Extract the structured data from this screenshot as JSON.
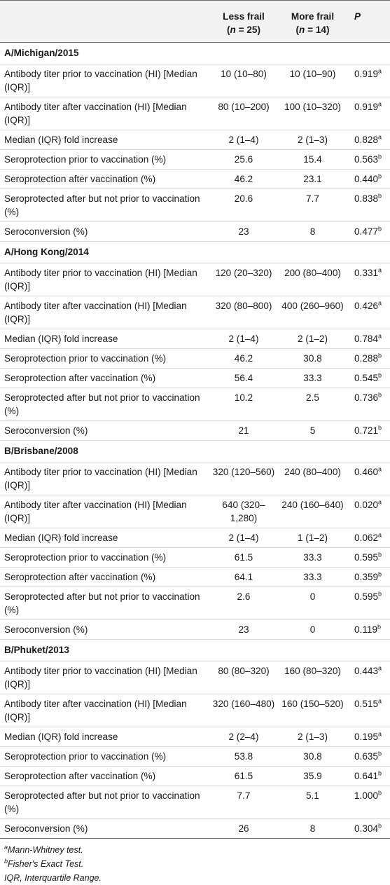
{
  "header": {
    "col_label": "",
    "less_frail": "Less frail",
    "less_frail_n": "(n = 25)",
    "more_frail": "More frail",
    "more_frail_n": "(n = 14)",
    "p": "P"
  },
  "sections": [
    {
      "title": "A/Michigan/2015",
      "rows": [
        {
          "label": "Antibody titer prior to vaccination (HI) [Median (IQR)]",
          "less": "10 (10–80)",
          "more": "10 (10–90)",
          "p": "0.919",
          "sup": "a"
        },
        {
          "label": "Antibody titer after vaccination (HI) [Median (IQR)]",
          "less": "80 (10–200)",
          "more": "100 (10–320)",
          "p": "0.919",
          "sup": "a"
        },
        {
          "label": "Median (IQR) fold increase",
          "less": "2 (1–4)",
          "more": "2 (1–3)",
          "p": "0.828",
          "sup": "a"
        },
        {
          "label": "Seroprotection prior to vaccination (%)",
          "less": "25.6",
          "more": "15.4",
          "p": "0.563",
          "sup": "b"
        },
        {
          "label": "Seroprotection after vaccination (%)",
          "less": "46.2",
          "more": "23.1",
          "p": "0.440",
          "sup": "b"
        },
        {
          "label": "Seroprotected after but not prior to vaccination (%)",
          "less": "20.6",
          "more": "7.7",
          "p": "0.838",
          "sup": "b"
        },
        {
          "label": "Seroconversion (%)",
          "less": "23",
          "more": "8",
          "p": "0.477",
          "sup": "b"
        }
      ]
    },
    {
      "title": "A/Hong Kong/2014",
      "rows": [
        {
          "label": "Antibody titer prior to vaccination (HI) [Median (IQR)]",
          "less": "120 (20–320)",
          "more": "200 (80–400)",
          "p": "0.331",
          "sup": "a"
        },
        {
          "label": "Antibody titer after vaccination (HI) [Median (IQR)]",
          "less": "320 (80–800)",
          "more": "400 (260–960)",
          "p": "0.426",
          "sup": "a"
        },
        {
          "label": "Median (IQR) fold increase",
          "less": "2 (1–4)",
          "more": "2 (1–2)",
          "p": "0.784",
          "sup": "a"
        },
        {
          "label": "Seroprotection prior to vaccination (%)",
          "less": "46.2",
          "more": "30.8",
          "p": "0.288",
          "sup": "b"
        },
        {
          "label": "Seroprotection after vaccination (%)",
          "less": "56.4",
          "more": "33.3",
          "p": "0.545",
          "sup": "b"
        },
        {
          "label": "Seroprotected after but not prior to vaccination (%)",
          "less": "10.2",
          "more": "2.5",
          "p": "0.736",
          "sup": "b"
        },
        {
          "label": "Seroconversion (%)",
          "less": "21",
          "more": "5",
          "p": "0.721",
          "sup": "b"
        }
      ]
    },
    {
      "title": "B/Brisbane/2008",
      "rows": [
        {
          "label": "Antibody titer prior to vaccination (HI) [Median (IQR)]",
          "less": "320 (120–560)",
          "more": "240 (80–400)",
          "p": "0.460",
          "sup": "a"
        },
        {
          "label": "Antibody titer after vaccination (HI) [Median (IQR)]",
          "less": "640 (320–1,280)",
          "more": "240 (160–640)",
          "p": "0.020",
          "sup": "a"
        },
        {
          "label": "Median (IQR) fold increase",
          "less": "2 (1–4)",
          "more": "1 (1–2)",
          "p": "0.062",
          "sup": "a"
        },
        {
          "label": "Seroprotection prior to vaccination (%)",
          "less": "61.5",
          "more": "33.3",
          "p": "0.595",
          "sup": "b"
        },
        {
          "label": "Seroprotection after vaccination (%)",
          "less": "64.1",
          "more": "33.3",
          "p": "0.359",
          "sup": "b"
        },
        {
          "label": "Seroprotected after but not prior to vaccination (%)",
          "less": "2.6",
          "more": "0",
          "p": "0.595",
          "sup": "b"
        },
        {
          "label": "Seroconversion (%)",
          "less": "23",
          "more": "0",
          "p": "0.119",
          "sup": "b"
        }
      ]
    },
    {
      "title": "B/Phuket/2013",
      "rows": [
        {
          "label": "Antibody titer prior to vaccination (HI) [Median (IQR)]",
          "less": "80 (80–320)",
          "more": "160 (80–320)",
          "p": "0.443",
          "sup": "a"
        },
        {
          "label": "Antibody titer after vaccination (HI) [Median (IQR)]",
          "less": "320 (160–480)",
          "more": "160 (150–520)",
          "p": "0.515",
          "sup": "a"
        },
        {
          "label": "Median (IQR) fold increase",
          "less": "2 (2–4)",
          "more": "2 (1–3)",
          "p": "0.195",
          "sup": "a"
        },
        {
          "label": "Seroprotection prior to vaccination (%)",
          "less": "53.8",
          "more": "30.8",
          "p": "0.635",
          "sup": "b"
        },
        {
          "label": "Seroprotection after vaccination (%)",
          "less": "61.5",
          "more": "35.9",
          "p": "0.641",
          "sup": "b"
        },
        {
          "label": "Seroprotected after but not prior to vaccination (%)",
          "less": "7.7",
          "more": "5.1",
          "p": "1.000",
          "sup": "b"
        },
        {
          "label": "Seroconversion (%)",
          "less": "26",
          "more": "8",
          "p": "0.304",
          "sup": "b"
        }
      ]
    }
  ],
  "footnotes": [
    {
      "sup": "a",
      "text": "Mann-Whitney test."
    },
    {
      "sup": "b",
      "text": "Fisher's Exact Test."
    },
    {
      "sup": "",
      "text": "IQR, Interquartile Range."
    }
  ]
}
